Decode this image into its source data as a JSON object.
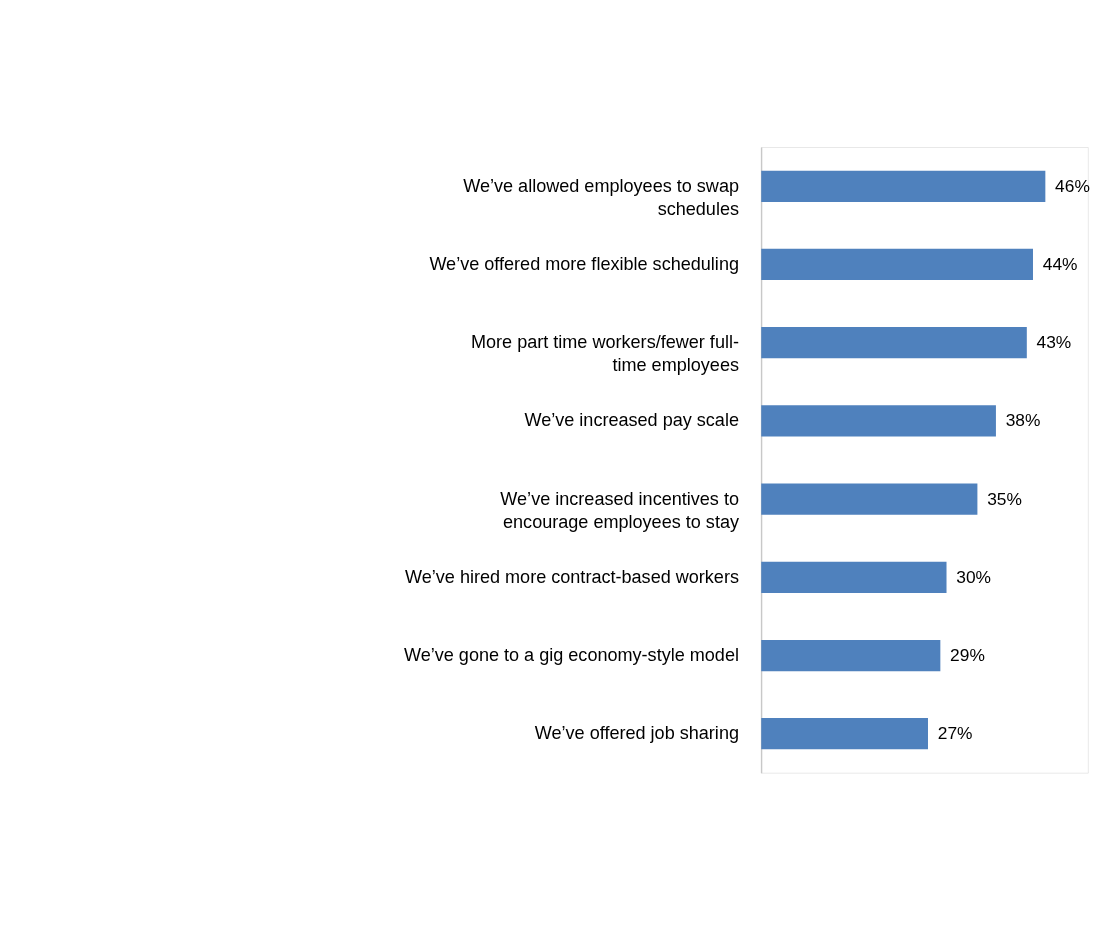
{
  "chart_data": {
    "type": "bar",
    "orientation": "horizontal",
    "color": "#4f81bd",
    "categories": [
      "We’ve allowed employees to swap schedules",
      "We’ve offered more flexible scheduling",
      "More part time workers/fewer full-time employees",
      "We’ve increased pay scale",
      "We’ve increased incentives to encourage employees to stay",
      "We’ve hired more contract-based workers",
      "We’ve gone to a gig economy-style model",
      "We’ve offered job sharing"
    ],
    "values": [
      46,
      44,
      43,
      38,
      35,
      30,
      29,
      27
    ],
    "value_labels": [
      "46%",
      "44%",
      "43%",
      "38%",
      "35%",
      "30%",
      "29%",
      "27%"
    ]
  }
}
